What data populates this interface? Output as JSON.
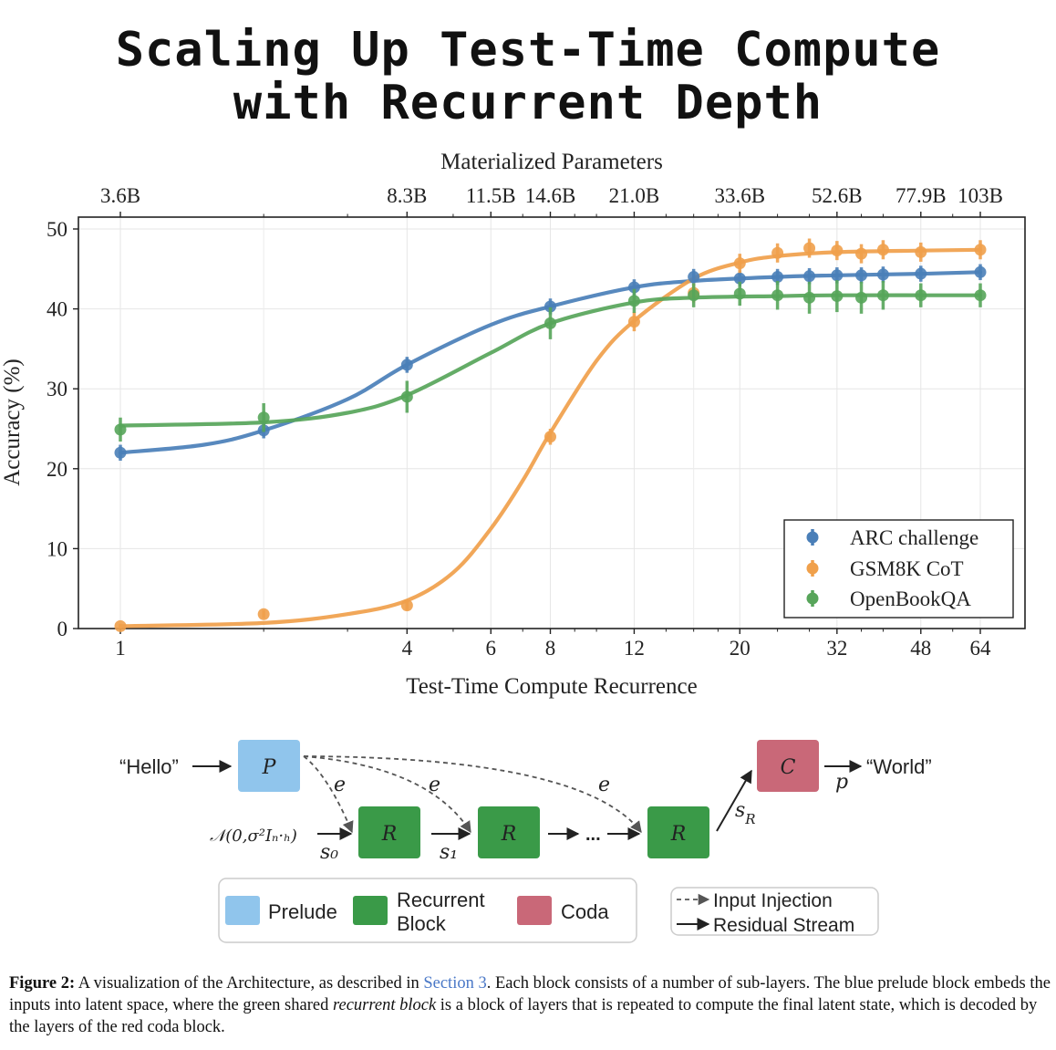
{
  "title_lines": [
    "Scaling Up Test-Time Compute",
    "with Recurrent Depth"
  ],
  "chart_data": {
    "type": "line",
    "top_axis_label": "Materialized Parameters",
    "top_ticks": [
      {
        "x": 1,
        "label": "3.6B"
      },
      {
        "x": 4,
        "label": "8.3B"
      },
      {
        "x": 6,
        "label": "11.5B"
      },
      {
        "x": 8,
        "label": "14.6B"
      },
      {
        "x": 12,
        "label": "21.0B"
      },
      {
        "x": 20,
        "label": "33.6B"
      },
      {
        "x": 32,
        "label": "52.6B"
      },
      {
        "x": 48,
        "label": "77.9B"
      },
      {
        "x": 64,
        "label": "103B"
      }
    ],
    "xlabel": "Test-Time Compute Recurrence",
    "ylabel": "Accuracy (%)",
    "xscale": "log",
    "x_ticks": [
      1,
      4,
      6,
      8,
      12,
      20,
      32,
      48,
      64
    ],
    "y_ticks": [
      0,
      10,
      20,
      30,
      40,
      50
    ],
    "ylim": [
      0,
      51
    ],
    "grid": true,
    "legend_position": "bottom-right",
    "series": [
      {
        "name": "ARC challenge",
        "color": "#4a7fb8",
        "points": [
          [
            1,
            22
          ],
          [
            2,
            24.8
          ],
          [
            4,
            33
          ],
          [
            8,
            40.3
          ],
          [
            12,
            42.7
          ],
          [
            16,
            44
          ],
          [
            20,
            43.8
          ],
          [
            24,
            44
          ],
          [
            28,
            44.1
          ],
          [
            32,
            44.2
          ],
          [
            36,
            44.2
          ],
          [
            40,
            44.3
          ],
          [
            48,
            44.4
          ],
          [
            64,
            44.6
          ]
        ],
        "err": [
          1,
          1,
          1,
          1,
          1,
          1,
          1,
          1,
          1,
          1,
          1,
          1,
          1,
          1
        ],
        "curve": [
          [
            1,
            22
          ],
          [
            1.5,
            23
          ],
          [
            2,
            24.8
          ],
          [
            3,
            28.7
          ],
          [
            4,
            33
          ],
          [
            6,
            38
          ],
          [
            8,
            40.3
          ],
          [
            12,
            42.7
          ],
          [
            16,
            43.5
          ],
          [
            24,
            44
          ],
          [
            32,
            44.2
          ],
          [
            48,
            44.4
          ],
          [
            64,
            44.6
          ]
        ]
      },
      {
        "name": "GSM8K CoT",
        "color": "#f0a04b",
        "points": [
          [
            1,
            0.3
          ],
          [
            2,
            1.8
          ],
          [
            4,
            2.9
          ],
          [
            8,
            24
          ],
          [
            12,
            38.4
          ],
          [
            16,
            42
          ],
          [
            20,
            45.7
          ],
          [
            24,
            47
          ],
          [
            28,
            47.6
          ],
          [
            32,
            47.3
          ],
          [
            36,
            46.9
          ],
          [
            40,
            47.4
          ],
          [
            48,
            47.1
          ],
          [
            64,
            47.4
          ]
        ],
        "err": [
          0.3,
          0.5,
          0.6,
          1,
          1.2,
          1.2,
          1.2,
          1.2,
          1.2,
          1.2,
          1.2,
          1.2,
          1.2,
          1.2
        ],
        "curve": [
          [
            1,
            0.3
          ],
          [
            2,
            0.7
          ],
          [
            3,
            1.8
          ],
          [
            4,
            3.5
          ],
          [
            5,
            7
          ],
          [
            6,
            12.5
          ],
          [
            7,
            18.5
          ],
          [
            8,
            24.5
          ],
          [
            10,
            33.5
          ],
          [
            12,
            38.5
          ],
          [
            16,
            43.8
          ],
          [
            20,
            45.8
          ],
          [
            24,
            46.6
          ],
          [
            32,
            47.1
          ],
          [
            48,
            47.3
          ],
          [
            64,
            47.4
          ]
        ]
      },
      {
        "name": "OpenBookQA",
        "color": "#57a55a",
        "points": [
          [
            1,
            24.9
          ],
          [
            2,
            26.4
          ],
          [
            4,
            29
          ],
          [
            8,
            38.2
          ],
          [
            12,
            41
          ],
          [
            16,
            41.7
          ],
          [
            20,
            41.9
          ],
          [
            24,
            41.7
          ],
          [
            28,
            41.4
          ],
          [
            32,
            41.6
          ],
          [
            36,
            41.4
          ],
          [
            40,
            41.7
          ],
          [
            48,
            41.7
          ],
          [
            64,
            41.7
          ]
        ],
        "err": [
          1.5,
          1.8,
          2,
          2,
          1.5,
          1.5,
          1.5,
          1.8,
          2,
          2,
          2,
          1.8,
          1.5,
          1.5
        ],
        "curve": [
          [
            1,
            25.4
          ],
          [
            2,
            25.8
          ],
          [
            3,
            27
          ],
          [
            4,
            29.2
          ],
          [
            6,
            34.5
          ],
          [
            8,
            38.2
          ],
          [
            12,
            40.8
          ],
          [
            16,
            41.4
          ],
          [
            24,
            41.6
          ],
          [
            32,
            41.7
          ],
          [
            64,
            41.7
          ]
        ]
      }
    ]
  },
  "diagram": {
    "input_text": "“Hello”",
    "output_text": "“World”",
    "prelude_letter": "P",
    "recurrent_letter": "R",
    "coda_letter": "C",
    "injection_label": "e",
    "noise_label": "𝒩(0,σ²Iₙ·ₕ)",
    "s0_label": "s₀",
    "s1_label": "s₁",
    "sR_label": "s",
    "sR_sub": "R",
    "ellipsis": "...",
    "p_label": "p",
    "colors": {
      "prelude": "#90c5ec",
      "recurrent": "#3a9a48",
      "coda": "#c96878"
    },
    "legend": {
      "prelude": "Prelude",
      "recurrent_line1": "Recurrent",
      "recurrent_line2": "Block",
      "coda": "Coda",
      "input_injection": "Input Injection",
      "residual_stream": "Residual Stream"
    }
  },
  "caption": {
    "label": "Figure 2:",
    "part1": " A visualization of the Architecture, as described in ",
    "link": "Section 3",
    "part2": ". Each block consists of a number of sub-layers. The blue prelude block embeds the inputs into latent space, where the green shared ",
    "italic": "recurrent block",
    "part3": " is a block of layers that is repeated to compute the final latent state, which is decoded by the layers of the red coda block."
  }
}
